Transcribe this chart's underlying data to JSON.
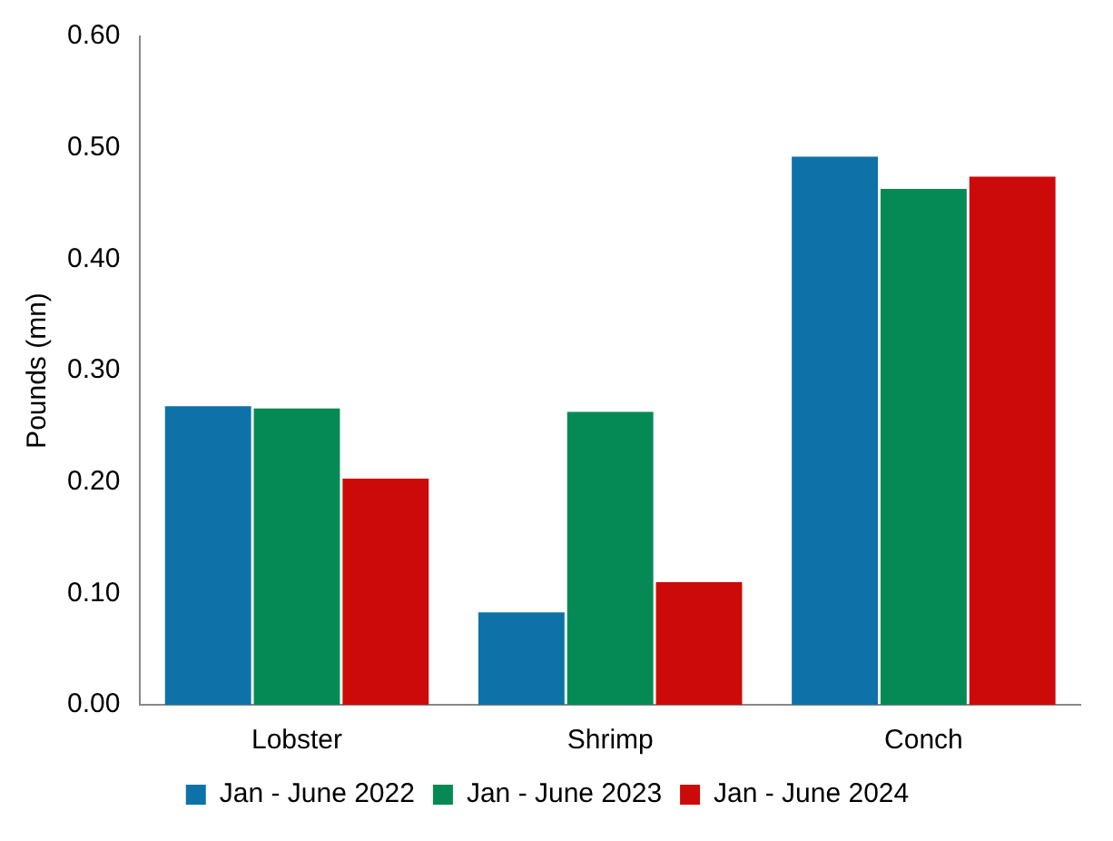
{
  "chart_data": {
    "type": "bar",
    "ylabel": "Pounds (mn)",
    "categories": [
      "Lobster",
      "Shrimp",
      "Conch"
    ],
    "series": [
      {
        "name": "Jan - June 2022",
        "color": "#0e72a8",
        "values": [
          0.268,
          0.083,
          0.492
        ]
      },
      {
        "name": "Jan - June 2023",
        "color": "#068a55",
        "values": [
          0.266,
          0.263,
          0.463
        ]
      },
      {
        "name": "Jan - June 2024",
        "color": "#cc0a0a",
        "values": [
          0.203,
          0.11,
          0.474
        ]
      }
    ],
    "ylim": [
      0,
      0.6
    ],
    "yticks": [
      {
        "value": 0,
        "label": "0.00"
      },
      {
        "value": 0.1,
        "label": "0.10"
      },
      {
        "value": 0.2,
        "label": "0.20"
      },
      {
        "value": 0.3,
        "label": "0.30"
      },
      {
        "value": 0.4,
        "label": "0.40"
      },
      {
        "value": 0.5,
        "label": "0.50"
      },
      {
        "value": 0.6,
        "label": "0.60"
      }
    ],
    "grid": false,
    "legend": "bottom"
  }
}
